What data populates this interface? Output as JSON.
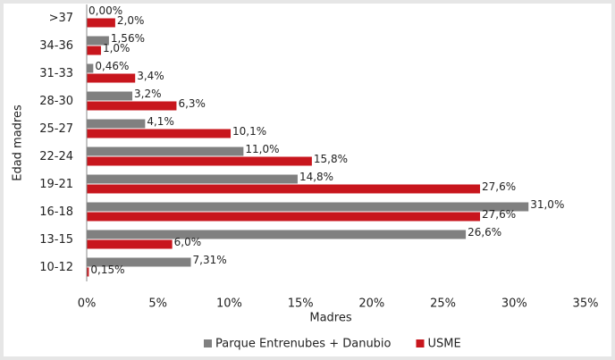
{
  "chart_data": {
    "type": "hbar",
    "categories": [
      ">37",
      "34-36",
      "31-33",
      "28-30",
      "25-27",
      "22-24",
      "19-21",
      "16-18",
      "13-15",
      "10-12"
    ],
    "series": [
      {
        "name": "Parque Entrenubes + Danubio",
        "color": "#808080",
        "values": [
          0.0,
          1.56,
          0.46,
          3.2,
          4.1,
          11.0,
          14.8,
          31.0,
          26.6,
          7.31
        ],
        "value_labels": [
          "0,00%",
          "1,56%",
          "0,46%",
          "3,2%",
          "4,1%",
          "11,0%",
          "14,8%",
          "31,0%",
          "26,6%",
          "7,31%"
        ]
      },
      {
        "name": "USME",
        "color": "#c8161d",
        "values": [
          2.0,
          1.0,
          3.4,
          6.3,
          10.1,
          15.8,
          27.6,
          27.6,
          6.0,
          0.15
        ],
        "value_labels": [
          "2,0%",
          "1,0%",
          "3,4%",
          "6,3%",
          "10,1%",
          "15,8%",
          "27,6%",
          "27,6%",
          "6,0%",
          "0,15%"
        ]
      }
    ],
    "xlabel": "Madres",
    "ylabel": "Edad madres",
    "xlim": [
      0,
      35
    ],
    "xticks": [
      {
        "value": 0,
        "label": "0%"
      },
      {
        "value": 5,
        "label": "5%"
      },
      {
        "value": 10,
        "label": "10%"
      },
      {
        "value": 15,
        "label": "15%"
      },
      {
        "value": 20,
        "label": "20%"
      },
      {
        "value": 25,
        "label": "25%"
      },
      {
        "value": 30,
        "label": "30%"
      },
      {
        "value": 35,
        "label": "35%"
      }
    ],
    "legend": "bottom"
  }
}
